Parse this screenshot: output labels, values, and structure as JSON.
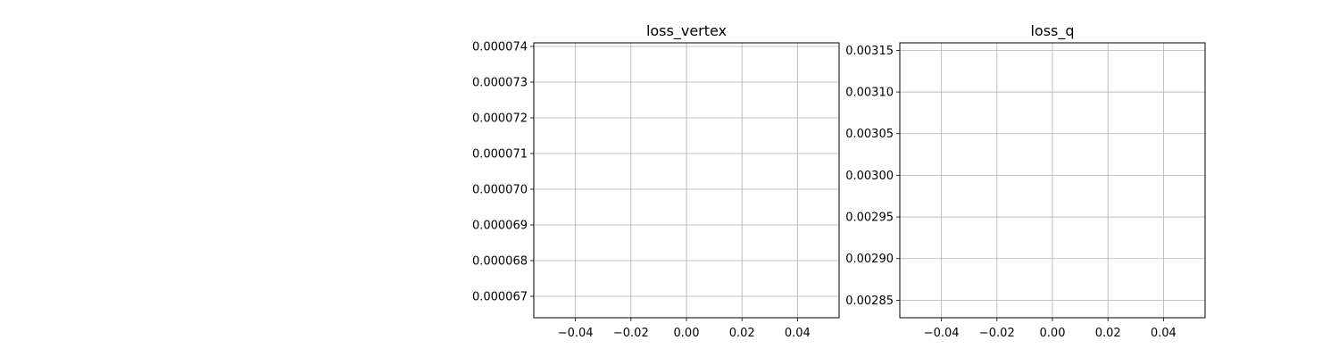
{
  "chart_data": [
    {
      "type": "line",
      "title": "loss_vertex",
      "xlabel": "",
      "ylabel": "",
      "xlim": [
        -0.055,
        0.055
      ],
      "ylim": [
        6.64e-05,
        7.41e-05
      ],
      "xticks": [
        -0.04,
        -0.02,
        0.0,
        0.02,
        0.04
      ],
      "xtick_labels": [
        "−0.04",
        "−0.02",
        "0.00",
        "0.02",
        "0.04"
      ],
      "yticks": [
        6.7e-05,
        6.8e-05,
        6.9e-05,
        7e-05,
        7.1e-05,
        7.2e-05,
        7.3e-05,
        7.4e-05
      ],
      "ytick_labels": [
        "0.000067",
        "0.000068",
        "0.000069",
        "0.000070",
        "0.000071",
        "0.000072",
        "0.000073",
        "0.000074"
      ],
      "grid": true,
      "series": []
    },
    {
      "type": "line",
      "title": "loss_q",
      "xlabel": "",
      "ylabel": "",
      "xlim": [
        -0.055,
        0.055
      ],
      "ylim": [
        0.002829,
        0.003159
      ],
      "xticks": [
        -0.04,
        -0.02,
        0.0,
        0.02,
        0.04
      ],
      "xtick_labels": [
        "−0.04",
        "−0.02",
        "0.00",
        "0.02",
        "0.04"
      ],
      "yticks": [
        0.00285,
        0.0029,
        0.00295,
        0.003,
        0.00305,
        0.0031,
        0.00315
      ],
      "ytick_labels": [
        "0.00285",
        "0.00290",
        "0.00295",
        "0.00300",
        "0.00305",
        "0.00310",
        "0.00315"
      ],
      "grid": true,
      "series": []
    }
  ]
}
